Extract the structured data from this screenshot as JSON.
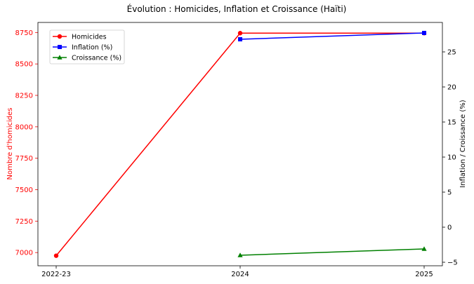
{
  "chart_data": {
    "type": "line",
    "title": "Évolution : Homicides, Inflation et Croissance (Haïti)",
    "categories": [
      "2022-23",
      "2024",
      "2025"
    ],
    "xlabel": "",
    "left_axis": {
      "label": "Nombre d'homicides",
      "color": "#ff0000",
      "ylim": [
        6895,
        8830
      ],
      "ticks": [
        7000,
        7250,
        7500,
        7750,
        8000,
        8250,
        8500,
        8750
      ]
    },
    "right_axis": {
      "label": "Inflation / Croissance (%)",
      "color": "#000000",
      "ylim": [
        -5.5,
        29.2
      ],
      "ticks": [
        -5,
        0,
        5,
        10,
        15,
        20,
        25
      ]
    },
    "series": [
      {
        "name": "Homicides",
        "axis": "left",
        "color": "#ff0000",
        "marker": "circle",
        "values": [
          6975,
          8745,
          8745
        ]
      },
      {
        "name": "Inflation (%)",
        "axis": "right",
        "color": "#0000ff",
        "marker": "square",
        "values": [
          null,
          26.8,
          27.7
        ]
      },
      {
        "name": "Croissance (%)",
        "axis": "right",
        "color": "#008000",
        "marker": "triangle",
        "values": [
          null,
          -4.0,
          -3.1
        ]
      }
    ],
    "legend": {
      "position": "top-left"
    },
    "grid": false
  }
}
